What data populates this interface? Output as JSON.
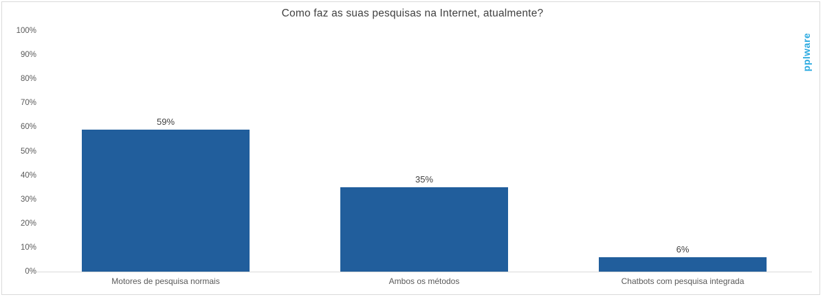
{
  "branding": {
    "logo_text": "pplware",
    "logo_color": "#29a9e0"
  },
  "chart_data": {
    "type": "bar",
    "title": "Como faz as suas pesquisas na Internet, atualmente?",
    "categories": [
      "Motores de pesquisa normais",
      "Ambos os métodos",
      "Chatbots com pesquisa integrada"
    ],
    "values": [
      59,
      35,
      6
    ],
    "value_labels": [
      "59%",
      "35%",
      "6%"
    ],
    "y_ticks": [
      "0%",
      "10%",
      "20%",
      "30%",
      "40%",
      "50%",
      "60%",
      "70%",
      "80%",
      "90%",
      "100%"
    ],
    "ylim": [
      0,
      100
    ],
    "y_tick_step": 10,
    "grid": false,
    "legend_position": "none",
    "xlabel": "",
    "ylabel": "",
    "colors": {
      "bar": "#215e9c",
      "axis_line": "#d9d9d9",
      "frame_border": "#d9d9d9",
      "title_text": "#404040",
      "tick_text": "#595959",
      "category_text": "#595959",
      "value_label_text": "#404040",
      "background": "#ffffff"
    }
  }
}
